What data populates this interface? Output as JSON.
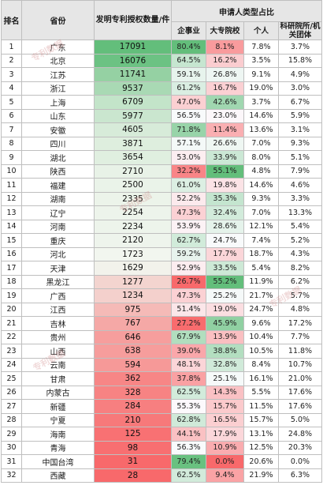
{
  "chart_data": {
    "type": "table",
    "headers": {
      "rank": "排名",
      "province": "省份",
      "count": "发明专利授权数量/件",
      "group": "申请人类型占比",
      "enterprise": "企事业",
      "university": "大专院校",
      "individual": "个人",
      "institute": "科研院所/机关团体"
    },
    "rows": [
      {
        "rank": "1",
        "province": "广东",
        "count": 17091,
        "enterprise": "80.4%",
        "university": "8.1%",
        "individual": "7.8%",
        "institute": "3.7%"
      },
      {
        "rank": "2",
        "province": "北京",
        "count": 16076,
        "enterprise": "64.5%",
        "university": "16.2%",
        "individual": "3.5%",
        "institute": "15.8%"
      },
      {
        "rank": "3",
        "province": "江苏",
        "count": 11741,
        "enterprise": "59.1%",
        "university": "26.8%",
        "individual": "9.1%",
        "institute": "4.9%"
      },
      {
        "rank": "4",
        "province": "浙江",
        "count": 9537,
        "enterprise": "61.2%",
        "university": "16.7%",
        "individual": "19.0%",
        "institute": "3.0%"
      },
      {
        "rank": "5",
        "province": "上海",
        "count": 6709,
        "enterprise": "47.0%",
        "university": "42.6%",
        "individual": "3.7%",
        "institute": "6.7%"
      },
      {
        "rank": "6",
        "province": "山东",
        "count": 5977,
        "enterprise": "56.5%",
        "university": "23.0%",
        "individual": "14.6%",
        "institute": "5.9%"
      },
      {
        "rank": "7",
        "province": "安徽",
        "count": 4605,
        "enterprise": "71.8%",
        "university": "11.4%",
        "individual": "13.6%",
        "institute": "3.1%"
      },
      {
        "rank": "8",
        "province": "四川",
        "count": 3871,
        "enterprise": "57.1%",
        "university": "26.6%",
        "individual": "7.0%",
        "institute": "9.3%"
      },
      {
        "rank": "9",
        "province": "湖北",
        "count": 3654,
        "enterprise": "53.0%",
        "university": "33.9%",
        "individual": "8.0%",
        "institute": "5.1%"
      },
      {
        "rank": "10",
        "province": "陕西",
        "count": 2710,
        "enterprise": "32.2%",
        "university": "55.1%",
        "individual": "4.8%",
        "institute": "7.9%"
      },
      {
        "rank": "11",
        "province": "福建",
        "count": 2500,
        "enterprise": "61.0%",
        "university": "19.8%",
        "individual": "14.6%",
        "institute": "4.6%"
      },
      {
        "rank": "12",
        "province": "湖南",
        "count": 2335,
        "enterprise": "52.2%",
        "university": "35.3%",
        "individual": "9.3%",
        "institute": "3.3%"
      },
      {
        "rank": "13",
        "province": "辽宁",
        "count": 2254,
        "enterprise": "47.3%",
        "university": "32.4%",
        "individual": "7.0%",
        "institute": "13.3%"
      },
      {
        "rank": "14",
        "province": "河南",
        "count": 2234,
        "enterprise": "53.9%",
        "university": "28.6%",
        "individual": "12.1%",
        "institute": "5.4%"
      },
      {
        "rank": "15",
        "province": "重庆",
        "count": 2120,
        "enterprise": "62.7%",
        "university": "24.7%",
        "individual": "7.4%",
        "institute": "5.2%"
      },
      {
        "rank": "16",
        "province": "河北",
        "count": 1723,
        "enterprise": "59.2%",
        "university": "17.7%",
        "individual": "18.7%",
        "institute": "4.3%"
      },
      {
        "rank": "17",
        "province": "天津",
        "count": 1629,
        "enterprise": "52.9%",
        "university": "33.5%",
        "individual": "5.4%",
        "institute": "8.2%"
      },
      {
        "rank": "18",
        "province": "黑龙江",
        "count": 1277,
        "enterprise": "26.7%",
        "university": "55.2%",
        "individual": "11.9%",
        "institute": "6.2%"
      },
      {
        "rank": "19",
        "province": "广西",
        "count": 1234,
        "enterprise": "47.3%",
        "university": "25.2%",
        "individual": "21.7%",
        "institute": "5.7%"
      },
      {
        "rank": "20",
        "province": "江西",
        "count": 975,
        "enterprise": "51.4%",
        "university": "19.0%",
        "individual": "24.7%",
        "institute": "4.8%"
      },
      {
        "rank": "21",
        "province": "吉林",
        "count": 767,
        "enterprise": "27.2%",
        "university": "45.9%",
        "individual": "9.6%",
        "institute": "17.2%"
      },
      {
        "rank": "22",
        "province": "贵州",
        "count": 646,
        "enterprise": "67.9%",
        "university": "13.9%",
        "individual": "10.4%",
        "institute": "7.7%"
      },
      {
        "rank": "23",
        "province": "山西",
        "count": 638,
        "enterprise": "39.0%",
        "university": "38.8%",
        "individual": "10.5%",
        "institute": "11.8%"
      },
      {
        "rank": "24",
        "province": "云南",
        "count": 594,
        "enterprise": "48.1%",
        "university": "32.8%",
        "individual": "8.4%",
        "institute": "10.7%"
      },
      {
        "rank": "25",
        "province": "甘肃",
        "count": 362,
        "enterprise": "37.8%",
        "university": "25.1%",
        "individual": "16.1%",
        "institute": "21.0%"
      },
      {
        "rank": "26",
        "province": "内蒙古",
        "count": 328,
        "enterprise": "62.5%",
        "university": "14.3%",
        "individual": "5.5%",
        "institute": "17.6%"
      },
      {
        "rank": "27",
        "province": "新疆",
        "count": 284,
        "enterprise": "55.3%",
        "university": "15.7%",
        "individual": "11.5%",
        "institute": "17.6%"
      },
      {
        "rank": "28",
        "province": "宁夏",
        "count": 210,
        "enterprise": "62.8%",
        "university": "16.5%",
        "individual": "15.7%",
        "institute": "5.0%"
      },
      {
        "rank": "29",
        "province": "海南",
        "count": 125,
        "enterprise": "44.1%",
        "university": "17.9%",
        "individual": "13.1%",
        "institute": "24.8%"
      },
      {
        "rank": "30",
        "province": "青海",
        "count": 98,
        "enterprise": "56.3%",
        "university": "10.9%",
        "individual": "12.5%",
        "institute": "20.3%"
      },
      {
        "rank": "31",
        "province": "中国台湾",
        "count": 31,
        "enterprise": "79.4%",
        "university": "0.0%",
        "individual": "20.6%",
        "institute": "0.0%"
      },
      {
        "rank": "32",
        "province": "西藏",
        "count": 28,
        "enterprise": "62.5%",
        "university": "9.4%",
        "individual": "21.9%",
        "institute": "6.3%"
      }
    ],
    "colors": {
      "count_high": "#63be7b",
      "count_mid": "#f2f6ef",
      "count_low": "#f8696b",
      "pct_high": "#63be7b",
      "pct_mid": "#fcfcff",
      "pct_low": "#f8696b",
      "header_bg": "#e6e6e6"
    }
  },
  "watermark": {
    "text": "专利数据"
  }
}
